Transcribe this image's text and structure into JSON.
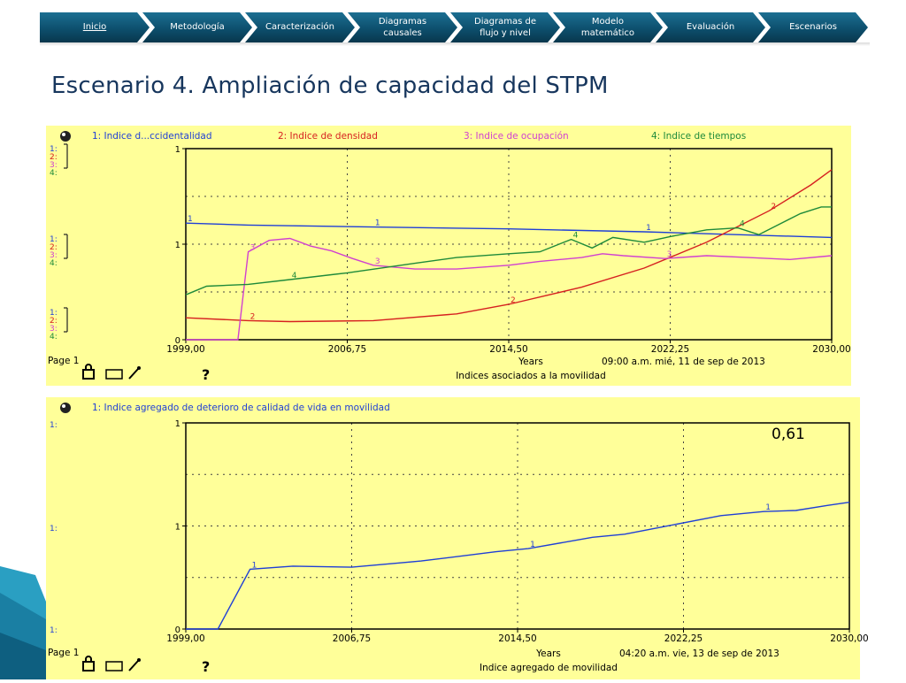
{
  "nav": {
    "items": [
      {
        "label": "Inicio",
        "active": true
      },
      {
        "label": "Metodología"
      },
      {
        "label": "Caracterización"
      },
      {
        "label": "Diagramas\ncausales"
      },
      {
        "label": "Diagramas de\nflujo y nivel"
      },
      {
        "label": "Modelo\nmatemático"
      },
      {
        "label": "Evaluación"
      },
      {
        "label": "Escenarios"
      }
    ],
    "colors": {
      "bar": "#0d4f6d",
      "text": "#ffffff"
    }
  },
  "slide": {
    "title": "Escenario 4. Ampliación de capacidad del STPM"
  },
  "chart_data": [
    {
      "type": "line",
      "series": [
        {
          "name": "1: Indice d...ccidentalidad",
          "color": "#1f3fd6",
          "x": [
            1999.0,
            2002.0,
            2008.0,
            2014.5,
            2021.0,
            2030.0
          ],
          "y": [
            1.22,
            1.2,
            1.18,
            1.16,
            1.13,
            1.07
          ]
        },
        {
          "name": "2: Indice de densidad",
          "color": "#d62020",
          "x": [
            1999.0,
            2002.0,
            2004.0,
            2008.0,
            2012.0,
            2014.5,
            2018.0,
            2021.0,
            2024.0,
            2027.0,
            2029.0,
            2030.0
          ],
          "y": [
            0.23,
            0.2,
            0.19,
            0.2,
            0.27,
            0.37,
            0.55,
            0.75,
            1.02,
            1.35,
            1.62,
            1.78
          ]
        },
        {
          "name": "3: Indice de ocupación",
          "color": "#d040d0",
          "x": [
            1999.0,
            2000.0,
            2001.5,
            2002.0,
            2003.0,
            2004.0,
            2005.0,
            2006.0,
            2007.0,
            2008.0,
            2010.0,
            2012.0,
            2014.5,
            2016.0,
            2018.0,
            2019.0,
            2020.0,
            2022.0,
            2024.0,
            2026.0,
            2028.0,
            2030.0
          ],
          "y": [
            0.0,
            0.0,
            0.0,
            0.92,
            1.04,
            1.06,
            0.98,
            0.93,
            0.85,
            0.78,
            0.74,
            0.74,
            0.78,
            0.82,
            0.86,
            0.9,
            0.88,
            0.85,
            0.88,
            0.86,
            0.84,
            0.88
          ]
        },
        {
          "name": "4: Indice de tiempos",
          "color": "#1e8a3a",
          "x": [
            1999.0,
            2000.0,
            2002.0,
            2004.0,
            2006.75,
            2010.0,
            2012.0,
            2014.5,
            2016.0,
            2017.5,
            2018.5,
            2019.5,
            2021.0,
            2022.25,
            2024.0,
            2025.5,
            2026.5,
            2028.5,
            2029.5,
            2030.0
          ],
          "y": [
            0.47,
            0.56,
            0.58,
            0.63,
            0.7,
            0.8,
            0.86,
            0.9,
            0.92,
            1.05,
            0.96,
            1.07,
            1.02,
            1.08,
            1.15,
            1.17,
            1.1,
            1.32,
            1.39,
            1.39
          ]
        }
      ],
      "xlim": [
        1999.0,
        2030.0
      ],
      "x_ticks": [
        "1999,00",
        "2006,75",
        "2014,50",
        "2022,25",
        "2030,00"
      ],
      "ylim": [
        0,
        2
      ],
      "y_ticks": [
        "0",
        "1",
        "1"
      ],
      "left_scale_labels": [
        "1:",
        "2:",
        "3:",
        "4:"
      ],
      "xlabel": "Years",
      "caption": "Indices asociados a la movilidad",
      "page_label": "Page 1",
      "timestamp": "09:00 a.m.   mié, 11 de sep de 2013",
      "help_mark": "?",
      "grid": true
    },
    {
      "type": "line",
      "series": [
        {
          "name": "1: Indice agregado de  deterioro de  calidad de vida  en movilidad",
          "color": "#1f3fd6",
          "x": [
            1999.0,
            2000.5,
            2002.0,
            2004.0,
            2006.75,
            2010.0,
            2013.5,
            2015.0,
            2018.0,
            2019.5,
            2021.0,
            2024.0,
            2026.0,
            2027.5,
            2029.0,
            2030.0
          ],
          "y": [
            0.0,
            0.0,
            0.58,
            0.61,
            0.6,
            0.66,
            0.75,
            0.78,
            0.89,
            0.92,
            0.98,
            1.1,
            1.14,
            1.15,
            1.2,
            1.23
          ]
        }
      ],
      "xlim": [
        1999.0,
        2030.0
      ],
      "x_ticks": [
        "1999,00",
        "2006,75",
        "2014,50",
        "2022,25",
        "2030,00"
      ],
      "ylim": [
        0,
        2
      ],
      "y_ticks": [
        "0",
        "1",
        "1"
      ],
      "left_scale_labels": [
        "1:",
        "1:",
        "1:"
      ],
      "xlabel": "Years",
      "caption": "Indice agregado de movilidad",
      "page_label": "Page 1",
      "timestamp": "04:20 a.m.   vie, 13 de sep de 2013",
      "help_mark": "?",
      "annotation": "0,61",
      "grid": true
    }
  ],
  "colors": {
    "panel_bg": "#ffff99",
    "title_color": "#17365d",
    "accent": "#0d4f6d"
  }
}
